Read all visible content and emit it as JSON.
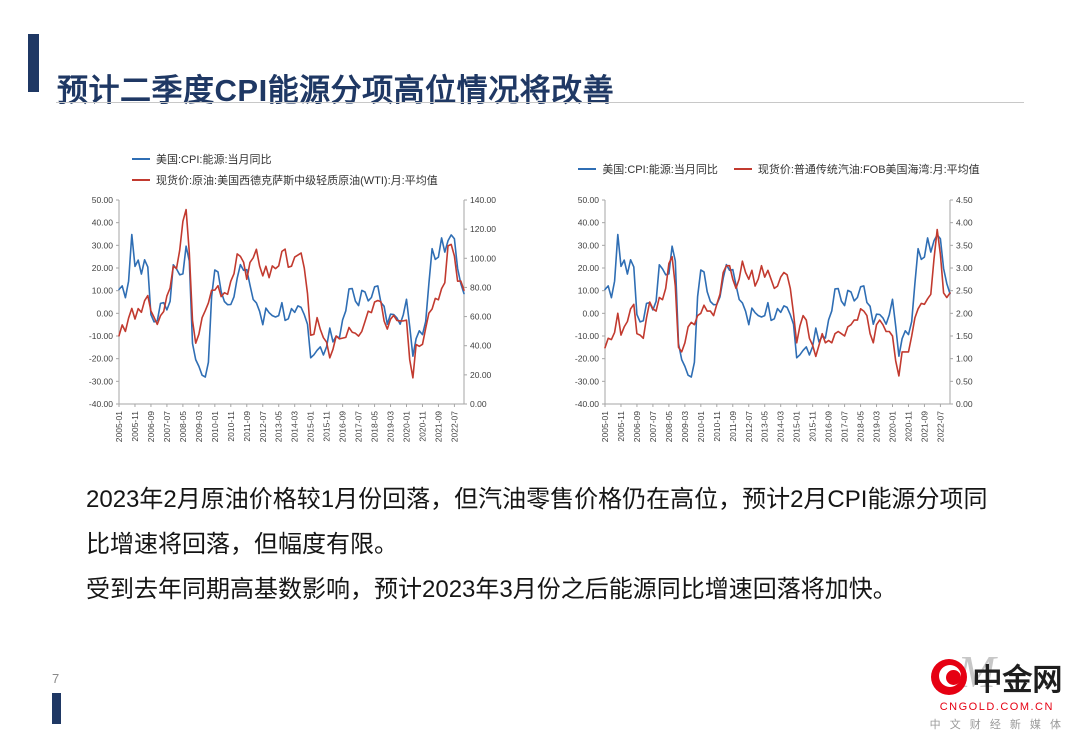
{
  "title": "预计二季度CPI能源分项高位情况将改善",
  "body": {
    "p1": "2023年2月原油价格较1月份回落，但汽油零售价格仍在高位，预计2月CPI能源分项同比增速将回落，但幅度有限。",
    "p2": "受到去年同期高基数影响，预计2023年3月份之后能源同比增速回落将加快。"
  },
  "page_number": "7",
  "logo": {
    "watermark": "M",
    "name": "中金网",
    "domain": "CNGOLD.COM.CN",
    "tagline": "中 文 财 经 新 媒 体"
  },
  "colors": {
    "accent_navy": "#1f3864",
    "rule_gray": "#c8c8c8",
    "series_blue": "#2f6eb4",
    "series_red": "#c23a2f",
    "logo_red": "#e60012"
  },
  "chart_data": [
    {
      "type": "line",
      "legend_layout": "stack",
      "x_tick_labels": [
        "2005-01",
        "2005-11",
        "2006-09",
        "2007-07",
        "2008-05",
        "2009-03",
        "2010-01",
        "2010-11",
        "2011-09",
        "2012-07",
        "2013-05",
        "2014-03",
        "2015-01",
        "2015-11",
        "2016-09",
        "2017-07",
        "2018-05",
        "2019-03",
        "2020-01",
        "2020-11",
        "2021-09",
        "2022-07"
      ],
      "x_tick_step_months": 10,
      "x_months_total": 217,
      "left_axis": {
        "min": -40,
        "max": 50,
        "ticks": [
          "50.00",
          "40.00",
          "30.00",
          "20.00",
          "10.00",
          "0.00",
          "-10.00",
          "-20.00",
          "-30.00",
          "-40.00"
        ]
      },
      "right_axis": {
        "min": 0,
        "max": 140,
        "ticks": [
          "140.00",
          "120.00",
          "100.00",
          "80.00",
          "60.00",
          "40.00",
          "20.00",
          "0.00"
        ]
      },
      "series": [
        {
          "name": "美国:CPI:能源:当月同比",
          "axis": "left",
          "color": "#2f6eb4",
          "step_months": 2,
          "values": [
            10.5,
            12.1,
            6.9,
            14.2,
            34.8,
            20.7,
            23.5,
            17.3,
            23.6,
            20.5,
            -0.5,
            -3.8,
            -3.3,
            4.4,
            4.7,
            1.5,
            5.3,
            21.4,
            19.6,
            17.0,
            17.4,
            29.6,
            23.1,
            -13.3,
            -20.4,
            -23.4,
            -27.3,
            -28.1,
            -21.6,
            7.4,
            19.1,
            18.3,
            9.5,
            5.2,
            3.8,
            3.9,
            7.3,
            15.5,
            21.5,
            19.0,
            19.3,
            12.4,
            6.1,
            4.6,
            0.9,
            -5.0,
            2.3,
            0.3,
            -1.0,
            -1.6,
            -1.0,
            4.7,
            -3.1,
            -2.4,
            2.1,
            0.4,
            3.3,
            2.6,
            -0.6,
            -4.8,
            -19.6,
            -18.3,
            -16.3,
            -14.8,
            -18.4,
            -14.7,
            -6.5,
            -12.6,
            -10.1,
            -10.9,
            -2.9,
            1.1,
            10.8,
            10.9,
            5.4,
            3.4,
            10.1,
            9.4,
            5.5,
            7.0,
            11.7,
            12.1,
            4.8,
            3.1,
            -4.8,
            -0.4,
            -0.5,
            -2.0,
            -4.8,
            -0.6,
            6.2,
            -5.7,
            -18.9,
            -11.2,
            -7.7,
            -9.4,
            -3.6,
            13.2,
            28.5,
            23.8,
            24.8,
            33.3,
            27.0,
            32.0,
            34.6,
            32.9,
            19.8,
            13.1,
            8.7
          ]
        },
        {
          "name": "现货价:原油:美国西德克萨斯中级轻质原油(WTI):月:平均值",
          "axis": "right",
          "color": "#c23a2f",
          "step_months": 2,
          "values": [
            46.8,
            54.3,
            49.8,
            59.0,
            65.6,
            58.3,
            65.5,
            62.9,
            70.9,
            74.4,
            63.9,
            59.4,
            54.6,
            60.6,
            63.5,
            74.2,
            79.6,
            94.6,
            93.0,
            105.5,
            125.4,
            133.4,
            103.9,
            57.4,
            41.7,
            47.9,
            59.2,
            64.1,
            69.4,
            78.0,
            78.2,
            81.2,
            73.7,
            76.4,
            75.3,
            84.3,
            89.4,
            103.0,
            101.3,
            97.3,
            85.6,
            97.2,
            100.3,
            106.2,
            94.7,
            87.9,
            94.6,
            86.7,
            94.8,
            92.9,
            94.8,
            104.7,
            106.3,
            93.9,
            94.6,
            100.8,
            102.2,
            103.6,
            93.2,
            75.8,
            47.2,
            47.8,
            59.3,
            51.2,
            45.5,
            42.4,
            31.7,
            37.6,
            46.7,
            44.7,
            45.2,
            45.7,
            52.5,
            49.3,
            48.5,
            46.6,
            49.8,
            56.6,
            63.7,
            62.7,
            70.0,
            71.0,
            70.2,
            57.0,
            51.4,
            58.2,
            60.8,
            57.4,
            57.0,
            57.0,
            57.5,
            30.5,
            18.0,
            40.8,
            39.6,
            41.0,
            52.0,
            62.4,
            65.2,
            72.5,
            71.5,
            79.2,
            83.2,
            108.5,
            109.5,
            101.6,
            84.3,
            84.4,
            78.1
          ]
        }
      ]
    },
    {
      "type": "line",
      "legend_layout": "row",
      "x_tick_labels": [
        "2005-01",
        "2005-11",
        "2006-09",
        "2007-07",
        "2008-05",
        "2009-03",
        "2010-01",
        "2010-11",
        "2011-09",
        "2012-07",
        "2013-05",
        "2014-03",
        "2015-01",
        "2015-11",
        "2016-09",
        "2017-07",
        "2018-05",
        "2019-03",
        "2020-01",
        "2020-11",
        "2021-09",
        "2022-07"
      ],
      "x_tick_step_months": 10,
      "x_months_total": 217,
      "left_axis": {
        "min": -40,
        "max": 50,
        "ticks": [
          "50.00",
          "40.00",
          "30.00",
          "20.00",
          "10.00",
          "0.00",
          "-10.00",
          "-20.00",
          "-30.00",
          "-40.00"
        ]
      },
      "right_axis": {
        "min": 0,
        "max": 4.5,
        "ticks": [
          "4.50",
          "4.00",
          "3.50",
          "3.00",
          "2.50",
          "2.00",
          "1.50",
          "1.00",
          "0.50",
          "0.00"
        ]
      },
      "series": [
        {
          "name": "美国:CPI:能源:当月同比",
          "axis": "left",
          "color": "#2f6eb4",
          "step_months": 2,
          "values": [
            10.5,
            12.1,
            6.9,
            14.2,
            34.8,
            20.7,
            23.5,
            17.3,
            23.6,
            20.5,
            -0.5,
            -3.8,
            -3.3,
            4.4,
            4.7,
            1.5,
            5.3,
            21.4,
            19.6,
            17.0,
            17.4,
            29.6,
            23.1,
            -13.3,
            -20.4,
            -23.4,
            -27.3,
            -28.1,
            -21.6,
            7.4,
            19.1,
            18.3,
            9.5,
            5.2,
            3.8,
            3.9,
            7.3,
            15.5,
            21.5,
            19.0,
            19.3,
            12.4,
            6.1,
            4.6,
            0.9,
            -5.0,
            2.3,
            0.3,
            -1.0,
            -1.6,
            -1.0,
            4.7,
            -3.1,
            -2.4,
            2.1,
            0.4,
            3.3,
            2.6,
            -0.6,
            -4.8,
            -19.6,
            -18.3,
            -16.3,
            -14.8,
            -18.4,
            -14.7,
            -6.5,
            -12.6,
            -10.1,
            -10.9,
            -2.9,
            1.1,
            10.8,
            10.9,
            5.4,
            3.4,
            10.1,
            9.4,
            5.5,
            7.0,
            11.7,
            12.1,
            4.8,
            3.1,
            -4.8,
            -0.4,
            -0.5,
            -2.0,
            -4.8,
            -0.6,
            6.2,
            -5.7,
            -18.9,
            -11.2,
            -7.7,
            -9.4,
            -3.6,
            13.2,
            28.5,
            23.8,
            24.8,
            33.3,
            27.0,
            32.0,
            34.6,
            32.9,
            19.8,
            13.1,
            8.7
          ]
        },
        {
          "name": "现货价:普通传统汽油:FOB美国海湾:月:平均值",
          "axis": "right",
          "color": "#c23a2f",
          "step_months": 2,
          "values": [
            1.24,
            1.45,
            1.42,
            1.58,
            2.0,
            1.52,
            1.7,
            1.82,
            2.1,
            2.2,
            1.55,
            1.52,
            1.45,
            1.9,
            2.25,
            2.1,
            2.05,
            2.35,
            2.3,
            2.55,
            3.1,
            3.25,
            2.6,
            1.25,
            1.15,
            1.35,
            1.7,
            1.8,
            1.75,
            1.95,
            2.0,
            2.18,
            2.05,
            2.05,
            1.95,
            2.2,
            2.42,
            2.9,
            3.05,
            3.05,
            2.75,
            2.55,
            2.76,
            3.15,
            2.9,
            2.75,
            2.95,
            2.6,
            2.76,
            3.05,
            2.8,
            2.95,
            2.75,
            2.55,
            2.6,
            2.8,
            2.9,
            2.85,
            2.55,
            2.0,
            1.35,
            1.72,
            1.95,
            1.85,
            1.45,
            1.3,
            1.05,
            1.3,
            1.55,
            1.35,
            1.4,
            1.35,
            1.55,
            1.6,
            1.55,
            1.5,
            1.7,
            1.75,
            1.85,
            1.85,
            2.1,
            2.05,
            1.95,
            1.55,
            1.35,
            1.75,
            1.85,
            1.75,
            1.6,
            1.6,
            1.5,
            0.95,
            0.62,
            1.15,
            1.15,
            1.15,
            1.5,
            1.9,
            2.1,
            2.22,
            2.2,
            2.32,
            2.42,
            3.2,
            3.85,
            3.3,
            2.45,
            2.35,
            2.45
          ]
        }
      ]
    }
  ]
}
